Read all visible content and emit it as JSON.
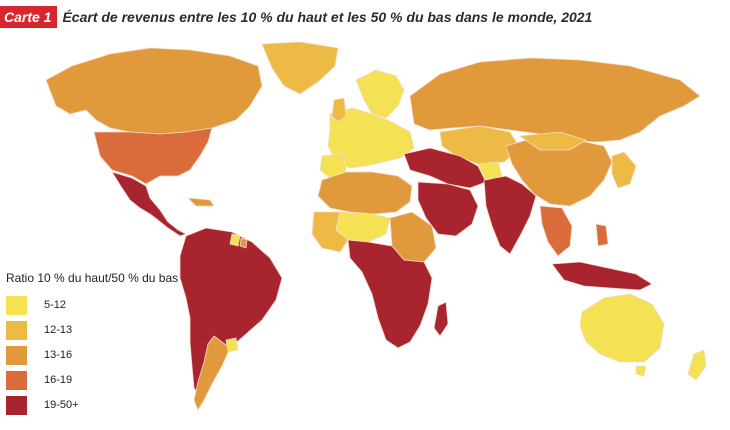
{
  "header": {
    "badge": "Carte 1",
    "title": "Écart de revenus entre les 10 % du haut et les 50 % du bas dans le monde, 2021"
  },
  "legend": {
    "title": "Ratio 10 % du haut/50 % du bas",
    "items": [
      {
        "label": "5-12",
        "color": "#f5e154"
      },
      {
        "label": "12-13",
        "color": "#edbb45"
      },
      {
        "label": "13-16",
        "color": "#e09a3c"
      },
      {
        "label": "16-19",
        "color": "#d96c3a"
      },
      {
        "label": "19-50+",
        "color": "#a82530"
      }
    ]
  },
  "colors": {
    "badge": "#d6262f",
    "ocean": "#ffffff",
    "border": "#f6d9c6"
  }
}
